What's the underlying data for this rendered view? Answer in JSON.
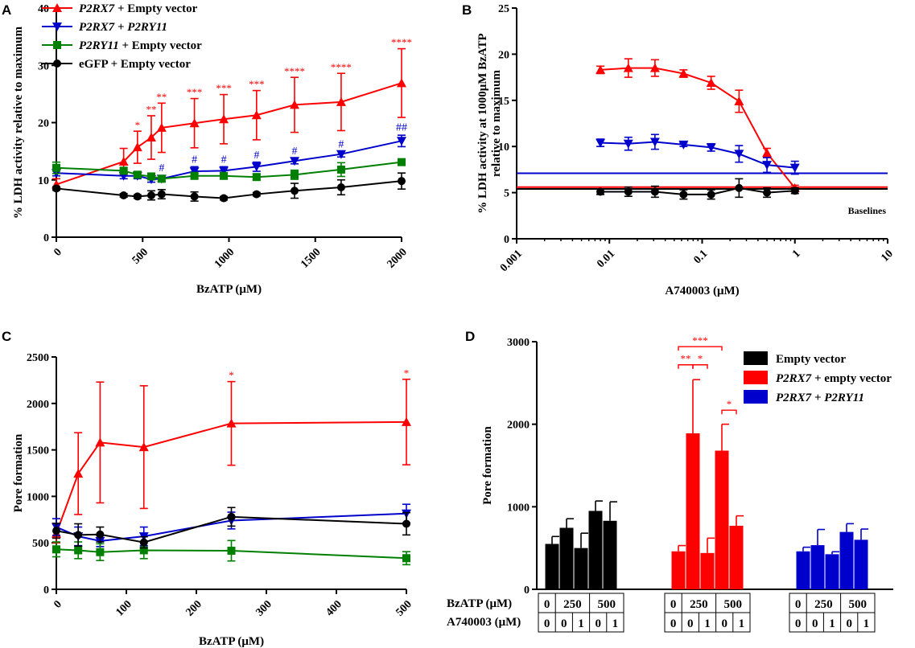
{
  "chart_data": [
    {
      "panel": "A",
      "type": "line",
      "xlabel": "BzATP (μM)",
      "ylabel": "% LDH activity relative to maximum",
      "xlim": [
        0,
        2000
      ],
      "ylim": [
        0,
        40
      ],
      "xticks": [
        "0",
        "500",
        "1000",
        "1500",
        "2000"
      ],
      "yticks": [
        "0",
        "10",
        "20",
        "30",
        "40"
      ],
      "legend": [
        {
          "italic": "P2RX7",
          "text": " + Empty vector"
        },
        {
          "italic": "P2RX7",
          "text": " + ",
          "italic2": "P2RY11"
        },
        {
          "italic": "P2RY11",
          "text": " + Empty vector"
        },
        {
          "italic": "",
          "text": "eGFP + Empty vector"
        }
      ],
      "series": [
        {
          "name": "P2RX7 + Empty vector",
          "color": "#ff0000",
          "marker": "triangle-up",
          "x": [
            0,
            390,
            470,
            550,
            610,
            800,
            970,
            1160,
            1380,
            1650,
            2000
          ],
          "y": [
            9.2,
            13.2,
            15.7,
            17.4,
            19.1,
            19.9,
            20.6,
            21.3,
            23.1,
            23.6,
            26.9
          ],
          "err": [
            1,
            2.3,
            2.8,
            3.8,
            4.3,
            4.3,
            4.3,
            4.3,
            4.8,
            5,
            6
          ]
        },
        {
          "name": "P2RX7 + P2RY11",
          "color": "#0000cc",
          "marker": "triangle-down",
          "x": [
            0,
            390,
            470,
            550,
            610,
            800,
            970,
            1160,
            1380,
            1650,
            2000
          ],
          "y": [
            11.2,
            10.7,
            10.7,
            10.1,
            10.2,
            11.5,
            11.6,
            12.3,
            13.3,
            14.5,
            16.8
          ],
          "err": [
            0.5,
            0.5,
            0.5,
            0.5,
            0.5,
            0.8,
            0.7,
            0.8,
            0.5,
            0.5,
            1
          ]
        },
        {
          "name": "P2RY11 + Empty vector",
          "color": "#008000",
          "marker": "square",
          "x": [
            0,
            390,
            470,
            550,
            610,
            800,
            970,
            1160,
            1380,
            1650,
            2000
          ],
          "y": [
            12.1,
            11.6,
            10.9,
            10.6,
            10.2,
            10.7,
            10.7,
            10.5,
            10.9,
            11.8,
            13.1
          ],
          "err": [
            1,
            0.5,
            0.5,
            0.5,
            0.5,
            0.5,
            0.5,
            0.5,
            0.8,
            1.2,
            0.5
          ]
        },
        {
          "name": "eGFP + Empty vector",
          "color": "#000000",
          "marker": "circle",
          "x": [
            0,
            390,
            470,
            550,
            610,
            800,
            970,
            1160,
            1380,
            1650,
            2000
          ],
          "y": [
            8.5,
            7.3,
            7.1,
            7.3,
            7.5,
            7.1,
            6.8,
            7.5,
            8.1,
            8.7,
            9.8
          ],
          "err": [
            0.3,
            0.3,
            0.3,
            0.8,
            0.8,
            0.8,
            0.3,
            0.3,
            1.3,
            1.3,
            1.4
          ]
        }
      ],
      "annotations": [
        {
          "text": "*",
          "x": 470,
          "y": 18.7,
          "color": "#ff0000"
        },
        {
          "text": "**",
          "x": 550,
          "y": 21.4,
          "color": "#ff0000"
        },
        {
          "text": "**",
          "x": 610,
          "y": 23.6,
          "color": "#ff0000"
        },
        {
          "text": "***",
          "x": 800,
          "y": 24.4,
          "color": "#ff0000"
        },
        {
          "text": "***",
          "x": 970,
          "y": 25.1,
          "color": "#ff0000"
        },
        {
          "text": "***",
          "x": 1160,
          "y": 25.8,
          "color": "#ff0000"
        },
        {
          "text": "****",
          "x": 1380,
          "y": 28.1,
          "color": "#ff0000"
        },
        {
          "text": "****",
          "x": 1650,
          "y": 28.8,
          "color": "#ff0000"
        },
        {
          "text": "****",
          "x": 2000,
          "y": 33.1,
          "color": "#ff0000"
        },
        {
          "text": "#",
          "x": 610,
          "y": 11.2,
          "color": "#0000cc"
        },
        {
          "text": "#",
          "x": 800,
          "y": 12.7,
          "color": "#0000cc"
        },
        {
          "text": "#",
          "x": 970,
          "y": 12.7,
          "color": "#0000cc"
        },
        {
          "text": "#",
          "x": 1160,
          "y": 13.5,
          "color": "#0000cc"
        },
        {
          "text": "#",
          "x": 1380,
          "y": 14.2,
          "color": "#0000cc"
        },
        {
          "text": "#",
          "x": 1650,
          "y": 15.4,
          "color": "#0000cc"
        },
        {
          "text": "##",
          "x": 2000,
          "y": 18.3,
          "color": "#0000cc"
        }
      ]
    },
    {
      "panel": "B",
      "type": "line",
      "xscale": "log",
      "xlabel": "A740003 (μM)",
      "ylabel_lines": [
        "% LDH activity at 1000μM BzATP",
        "relative to maximum"
      ],
      "xlim": [
        0.001,
        10
      ],
      "ylim": [
        0,
        25
      ],
      "xticks": [
        "0.001",
        "0.01",
        "0.1",
        "1",
        "10"
      ],
      "yticks": [
        "0",
        "5",
        "10",
        "15",
        "20",
        "25"
      ],
      "baselines_label": "Baselines",
      "baselines": [
        {
          "y": 7.1,
          "color": "#0000cc"
        },
        {
          "y": 5.6,
          "color": "#ff0000"
        },
        {
          "y": 5.4,
          "color": "#000000"
        }
      ],
      "series": [
        {
          "name": "P2RX7 + Empty vector",
          "color": "#ff0000",
          "marker": "triangle-up",
          "x": [
            0.008,
            0.016,
            0.031,
            0.063,
            0.125,
            0.25,
            0.5,
            1
          ],
          "y": [
            18.3,
            18.5,
            18.5,
            17.9,
            16.9,
            14.9,
            9.3,
            5.5
          ],
          "err": [
            0.4,
            1,
            0.9,
            0.4,
            0.7,
            1.2,
            0.5,
            0.3
          ]
        },
        {
          "name": "P2RX7 + P2RY11",
          "color": "#0000cc",
          "marker": "triangle-down",
          "x": [
            0.008,
            0.016,
            0.031,
            0.063,
            0.125,
            0.25,
            0.5,
            1
          ],
          "y": [
            10.4,
            10.3,
            10.5,
            10.2,
            9.9,
            9.2,
            8,
            7.7
          ],
          "err": [
            0.4,
            0.7,
            0.8,
            0.2,
            0.4,
            0.9,
            0.8,
            0.7
          ]
        },
        {
          "name": "eGFP + Empty vector",
          "color": "#000000",
          "marker": "circle",
          "x": [
            0.008,
            0.016,
            0.031,
            0.063,
            0.125,
            0.25,
            0.5,
            1
          ],
          "y": [
            5.1,
            5.1,
            5.1,
            4.8,
            4.8,
            5.5,
            5,
            5.2
          ],
          "err": [
            0.3,
            0.5,
            0.6,
            0.5,
            0.5,
            1,
            0.5,
            0.3
          ]
        }
      ]
    },
    {
      "panel": "C",
      "type": "line",
      "xlabel": "BzATP (μM)",
      "ylabel": "Pore formation",
      "xlim": [
        0,
        500
      ],
      "ylim": [
        0,
        2500
      ],
      "xticks": [
        "0",
        "100",
        "200",
        "300",
        "400",
        "500"
      ],
      "yticks": [
        "0",
        "500",
        "1000",
        "1500",
        "2000",
        "2500"
      ],
      "series": [
        {
          "name": "P2RX7 + Empty vector",
          "color": "#ff0000",
          "marker": "triangle-up",
          "x": [
            0,
            31.25,
            62.5,
            125,
            250,
            500
          ],
          "y": [
            600,
            1245,
            1580,
            1530,
            1785,
            1800
          ],
          "err": [
            100,
            440,
            650,
            660,
            450,
            460
          ]
        },
        {
          "name": "P2RX7 + P2RY11",
          "color": "#0000cc",
          "marker": "triangle-down",
          "x": [
            0,
            31.25,
            62.5,
            125,
            250,
            500
          ],
          "y": [
            670,
            570,
            520,
            570,
            740,
            815
          ],
          "err": [
            90,
            100,
            60,
            100,
            90,
            100
          ]
        },
        {
          "name": "P2RY11 + Empty vector",
          "color": "#008000",
          "marker": "square",
          "x": [
            0,
            31.25,
            62.5,
            125,
            250,
            500
          ],
          "y": [
            430,
            420,
            400,
            420,
            415,
            335
          ],
          "err": [
            80,
            90,
            90,
            90,
            110,
            70
          ]
        },
        {
          "name": "eGFP + Empty vector",
          "color": "#000000",
          "marker": "circle",
          "x": [
            0,
            31.25,
            62.5,
            125,
            250,
            500
          ],
          "y": [
            630,
            585,
            590,
            505,
            780,
            705
          ],
          "err": [
            80,
            120,
            80,
            60,
            100,
            120
          ]
        }
      ],
      "annotations": [
        {
          "text": "*",
          "x": 250,
          "y": 2250,
          "color": "#ff0000"
        },
        {
          "text": "*",
          "x": 500,
          "y": 2270,
          "color": "#ff0000"
        }
      ]
    },
    {
      "panel": "D",
      "type": "bar",
      "ylabel": "Pore formation",
      "ylim": [
        0,
        3000
      ],
      "yticks": [
        "0",
        "1000",
        "2000",
        "3000"
      ],
      "legend": [
        {
          "italic": "",
          "text": "Empty vector",
          "color": "#000000"
        },
        {
          "italic": "P2RX7",
          "text": " + empty vector",
          "color": "#ff0000"
        },
        {
          "italic": "P2RX7",
          "text": " + ",
          "italic2": "P2RY11",
          "color": "#0000cc"
        }
      ],
      "groups": [
        {
          "name": "Empty vector",
          "color": "#000000",
          "values": [
            550,
            745,
            500,
            950,
            830
          ],
          "err": [
            90,
            110,
            180,
            120,
            230
          ]
        },
        {
          "name": "P2RX7 + empty vector",
          "color": "#ff0000",
          "values": [
            460,
            1890,
            440,
            1680,
            770
          ],
          "err": [
            70,
            650,
            180,
            320,
            120
          ]
        },
        {
          "name": "P2RX7 + P2RY11",
          "color": "#0000cc",
          "values": [
            460,
            535,
            425,
            695,
            600
          ],
          "err": [
            50,
            190,
            30,
            100,
            130
          ]
        }
      ],
      "table": {
        "row1_label": "BzATP (μM)",
        "row1": [
          "0",
          "250",
          "500"
        ],
        "row2_label": "A740003 (μM)",
        "row2": [
          "0",
          "0",
          "1",
          "0",
          "1"
        ]
      },
      "significance": [
        {
          "text": "***",
          "from_bar": 0,
          "to_bar": 3,
          "y": 2940
        },
        {
          "text": "**",
          "from_bar": 0,
          "to_bar": 1,
          "y": 2720
        },
        {
          "text": "*",
          "from_bar": 1,
          "to_bar": 2,
          "y": 2720
        },
        {
          "text": "*",
          "from_bar": 3,
          "to_bar": 4,
          "y": 2170
        }
      ]
    }
  ],
  "panel_letters": [
    "A",
    "B",
    "C",
    "D"
  ]
}
